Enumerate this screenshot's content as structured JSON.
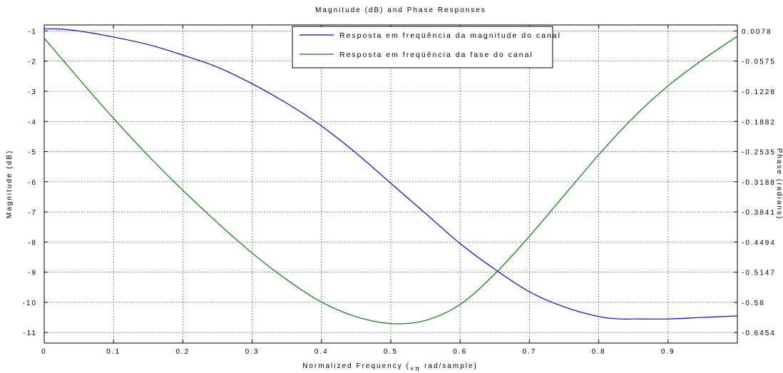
{
  "chart_data": {
    "type": "line",
    "title": "Magnitude (dB) and Phase Responses",
    "xlabel_main": "Normalized Frequency (",
    "xlabel_sub": "×π",
    "xlabel_end": " rad/sample)",
    "ylabel_left": "Magnitude (dB)",
    "ylabel_right": "Phase (radians)",
    "xlim": [
      0,
      1
    ],
    "ylim_left": [
      -11.35,
      -0.8
    ],
    "ylim_right": [
      -0.678,
      0.0239
    ],
    "x_ticks": [
      "0",
      "0.1",
      "0.2",
      "0.3",
      "0.4",
      "0.5",
      "0.6",
      "0.7",
      "0.8",
      "0.9"
    ],
    "x_tick_values": [
      0,
      0.1,
      0.2,
      0.3,
      0.4,
      0.5,
      0.6,
      0.7,
      0.8,
      0.9
    ],
    "y_left_ticks": [
      "-1",
      "-2",
      "-3",
      "-4",
      "-5",
      "-6",
      "-7",
      "-8",
      "-9",
      "-10",
      "-11"
    ],
    "y_left_tick_values": [
      -1,
      -2,
      -3,
      -4,
      -5,
      -6,
      -7,
      -8,
      -9,
      -10,
      -11
    ],
    "y_right_ticks": [
      "0.0078",
      "-0.0575",
      "-0.1228",
      "-0.1882",
      "-0.2535",
      "-0.3188",
      "-0.3841",
      "-0.4494",
      "-0.5147",
      "-0.58",
      "-0.6454"
    ],
    "grid": true,
    "legend_position": "top-center",
    "series": [
      {
        "name": "Resposta em freqüência da magnitude do canal",
        "axis": "left",
        "color": "#0000ff",
        "x": [
          0,
          0.02,
          0.05,
          0.1,
          0.15,
          0.2,
          0.25,
          0.3,
          0.35,
          0.4,
          0.45,
          0.5,
          0.55,
          0.6,
          0.65,
          0.7,
          0.75,
          0.8,
          0.83,
          0.85,
          0.9,
          0.95,
          1.0
        ],
        "values": [
          -0.93,
          -0.93,
          -1.0,
          -1.2,
          -1.45,
          -1.8,
          -2.2,
          -2.75,
          -3.4,
          -4.15,
          -5.05,
          -6.05,
          -7.05,
          -8.05,
          -8.9,
          -9.65,
          -10.15,
          -10.47,
          -10.55,
          -10.55,
          -10.55,
          -10.5,
          -10.45
        ]
      },
      {
        "name": "Resposta em freqüência da fase do canal",
        "axis": "right",
        "color": "#008000",
        "x": [
          0,
          0.05,
          0.1,
          0.15,
          0.2,
          0.25,
          0.3,
          0.35,
          0.4,
          0.45,
          0.5,
          0.55,
          0.6,
          0.65,
          0.7,
          0.75,
          0.8,
          0.85,
          0.9,
          0.95,
          1.0
        ],
        "values": [
          -0.0053,
          -0.0948,
          -0.1822,
          -0.2645,
          -0.3409,
          -0.4125,
          -0.4796,
          -0.5381,
          -0.5876,
          -0.6198,
          -0.635,
          -0.6281,
          -0.5929,
          -0.5256,
          -0.4424,
          -0.3523,
          -0.2625,
          -0.1802,
          -0.1104,
          -0.0528,
          -0.001
        ]
      }
    ]
  }
}
